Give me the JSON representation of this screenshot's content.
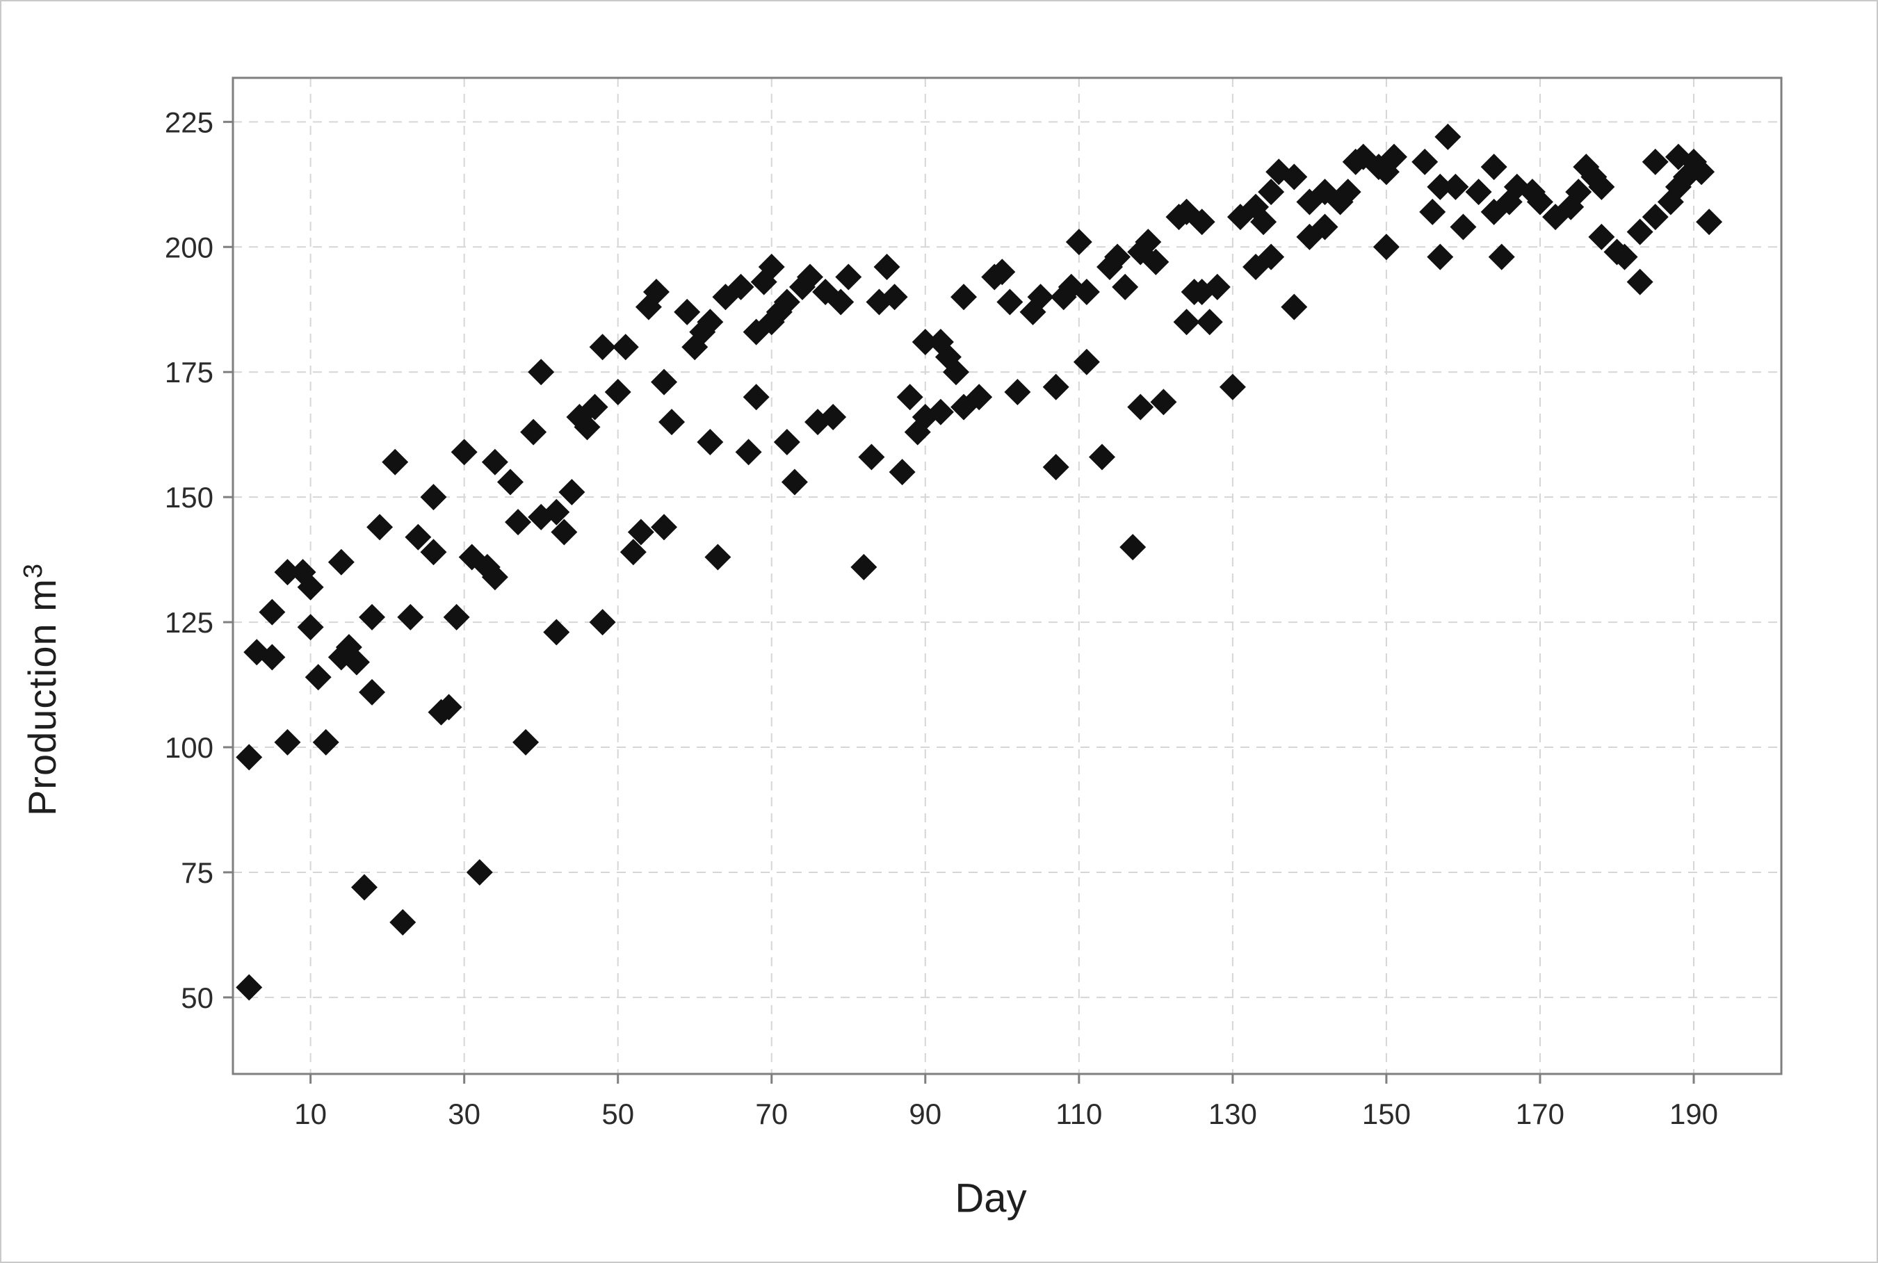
{
  "window": {
    "background_color": "#ffffff",
    "border_color": "#c9c9c9"
  },
  "chart_data": {
    "type": "scatter",
    "title": "",
    "xlabel": "Day",
    "ylabel_base": "Production m",
    "ylabel_sup": "3",
    "x_ticks": [
      10,
      30,
      50,
      70,
      90,
      110,
      130,
      150,
      170,
      190
    ],
    "y_ticks": [
      50,
      75,
      100,
      125,
      150,
      175,
      200,
      225
    ],
    "xlim": [
      -0.1,
      201.4
    ],
    "ylim": [
      34.7,
      233.8
    ],
    "grid": "dashed",
    "legend": "none",
    "marker": {
      "shape": "diamond",
      "color": "#111111",
      "half_diagonal": 19
    },
    "frame_color": "#7f7f7f",
    "grid_color": "#d6d6d6",
    "tick_color": "#7f7f7f",
    "tick_label_color": "#2b2b2b",
    "tick_label_size": 42,
    "points": [
      [
        2,
        52
      ],
      [
        2,
        98
      ],
      [
        3,
        119
      ],
      [
        5,
        118
      ],
      [
        5,
        127
      ],
      [
        7,
        101
      ],
      [
        7,
        135
      ],
      [
        9,
        135
      ],
      [
        10,
        124
      ],
      [
        10,
        132
      ],
      [
        11,
        114
      ],
      [
        12,
        101
      ],
      [
        14,
        118
      ],
      [
        14,
        137
      ],
      [
        15,
        120
      ],
      [
        16,
        117
      ],
      [
        17,
        72
      ],
      [
        18,
        111
      ],
      [
        18,
        126
      ],
      [
        19,
        144
      ],
      [
        21,
        157
      ],
      [
        22,
        65
      ],
      [
        23,
        126
      ],
      [
        24,
        142
      ],
      [
        26,
        139
      ],
      [
        26,
        150
      ],
      [
        27,
        107
      ],
      [
        28,
        108
      ],
      [
        29,
        126
      ],
      [
        30,
        159
      ],
      [
        31,
        138
      ],
      [
        32,
        75
      ],
      [
        33,
        136
      ],
      [
        34,
        134
      ],
      [
        34,
        157
      ],
      [
        36,
        153
      ],
      [
        37,
        145
      ],
      [
        38,
        101
      ],
      [
        39,
        163
      ],
      [
        40,
        146
      ],
      [
        40,
        175
      ],
      [
        42,
        123
      ],
      [
        42,
        147
      ],
      [
        43,
        143
      ],
      [
        44,
        151
      ],
      [
        45,
        166
      ],
      [
        46,
        164
      ],
      [
        47,
        168
      ],
      [
        48,
        125
      ],
      [
        48,
        180
      ],
      [
        50,
        171
      ],
      [
        51,
        180
      ],
      [
        52,
        139
      ],
      [
        53,
        143
      ],
      [
        54,
        188
      ],
      [
        55,
        191
      ],
      [
        56,
        144
      ],
      [
        56,
        173
      ],
      [
        57,
        165
      ],
      [
        59,
        187
      ],
      [
        60,
        180
      ],
      [
        61,
        183
      ],
      [
        62,
        161
      ],
      [
        62,
        185
      ],
      [
        63,
        138
      ],
      [
        64,
        190
      ],
      [
        66,
        192
      ],
      [
        67,
        159
      ],
      [
        68,
        170
      ],
      [
        68,
        183
      ],
      [
        69,
        193
      ],
      [
        70,
        185
      ],
      [
        70,
        196
      ],
      [
        71,
        187
      ],
      [
        72,
        161
      ],
      [
        72,
        189
      ],
      [
        73,
        153
      ],
      [
        74,
        192
      ],
      [
        75,
        194
      ],
      [
        76,
        165
      ],
      [
        77,
        191
      ],
      [
        78,
        166
      ],
      [
        79,
        189
      ],
      [
        80,
        194
      ],
      [
        82,
        136
      ],
      [
        83,
        158
      ],
      [
        84,
        189
      ],
      [
        85,
        196
      ],
      [
        86,
        190
      ],
      [
        87,
        155
      ],
      [
        88,
        170
      ],
      [
        89,
        163
      ],
      [
        90,
        166
      ],
      [
        90,
        181
      ],
      [
        92,
        167
      ],
      [
        92,
        181
      ],
      [
        93,
        178
      ],
      [
        94,
        175
      ],
      [
        95,
        168
      ],
      [
        95,
        190
      ],
      [
        97,
        170
      ],
      [
        99,
        194
      ],
      [
        100,
        195
      ],
      [
        101,
        189
      ],
      [
        102,
        171
      ],
      [
        104,
        187
      ],
      [
        105,
        190
      ],
      [
        107,
        156
      ],
      [
        107,
        172
      ],
      [
        108,
        190
      ],
      [
        109,
        192
      ],
      [
        110,
        201
      ],
      [
        111,
        177
      ],
      [
        111,
        191
      ],
      [
        113,
        158
      ],
      [
        114,
        196
      ],
      [
        115,
        198
      ],
      [
        116,
        192
      ],
      [
        117,
        140
      ],
      [
        118,
        168
      ],
      [
        118,
        199
      ],
      [
        119,
        201
      ],
      [
        120,
        197
      ],
      [
        121,
        169
      ],
      [
        123,
        206
      ],
      [
        124,
        185
      ],
      [
        124,
        207
      ],
      [
        125,
        191
      ],
      [
        126,
        191
      ],
      [
        126,
        205
      ],
      [
        127,
        185
      ],
      [
        128,
        192
      ],
      [
        130,
        172
      ],
      [
        131,
        206
      ],
      [
        133,
        196
      ],
      [
        133,
        208
      ],
      [
        134,
        205
      ],
      [
        135,
        198
      ],
      [
        135,
        211
      ],
      [
        136,
        215
      ],
      [
        138,
        188
      ],
      [
        138,
        214
      ],
      [
        140,
        202
      ],
      [
        140,
        209
      ],
      [
        142,
        204
      ],
      [
        142,
        211
      ],
      [
        144,
        209
      ],
      [
        145,
        211
      ],
      [
        146,
        217
      ],
      [
        147,
        218
      ],
      [
        149,
        216
      ],
      [
        150,
        200
      ],
      [
        150,
        215
      ],
      [
        151,
        218
      ],
      [
        155,
        217
      ],
      [
        156,
        207
      ],
      [
        157,
        198
      ],
      [
        157,
        212
      ],
      [
        158,
        222
      ],
      [
        159,
        212
      ],
      [
        160,
        204
      ],
      [
        162,
        211
      ],
      [
        164,
        207
      ],
      [
        164,
        216
      ],
      [
        165,
        198
      ],
      [
        166,
        209
      ],
      [
        167,
        212
      ],
      [
        169,
        211
      ],
      [
        170,
        209
      ],
      [
        172,
        206
      ],
      [
        174,
        208
      ],
      [
        175,
        211
      ],
      [
        176,
        216
      ],
      [
        177,
        214
      ],
      [
        178,
        202
      ],
      [
        178,
        212
      ],
      [
        180,
        199
      ],
      [
        181,
        198
      ],
      [
        183,
        193
      ],
      [
        183,
        203
      ],
      [
        185,
        206
      ],
      [
        185,
        217
      ],
      [
        187,
        209
      ],
      [
        188,
        212
      ],
      [
        188,
        218
      ],
      [
        189,
        214
      ],
      [
        190,
        217
      ],
      [
        191,
        215
      ],
      [
        192,
        205
      ]
    ]
  }
}
